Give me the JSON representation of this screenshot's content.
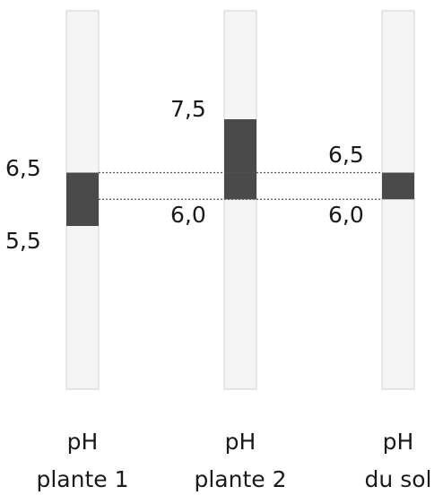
{
  "columns": [
    {
      "caption_line1": "pH",
      "caption_line2": "plante 1",
      "range_low": 5.5,
      "range_high": 6.5,
      "label_high": "6,5",
      "label_low": "5,5"
    },
    {
      "caption_line1": "pH",
      "caption_line2": "plante 2",
      "range_low": 6.0,
      "range_high": 7.5,
      "label_high": "7,5",
      "label_low": "6,0"
    },
    {
      "caption_line1": "pH",
      "caption_line2": "du sol",
      "range_low": 6.0,
      "range_high": 6.5,
      "label_high": "6,5",
      "label_low": "6,0"
    }
  ],
  "colors": {
    "track": "#f5f5f5",
    "track_border": "#d0d0d0",
    "range_fill": "#4a4a4a",
    "guide_line": "#555555",
    "text": "#1a1a1a"
  }
}
